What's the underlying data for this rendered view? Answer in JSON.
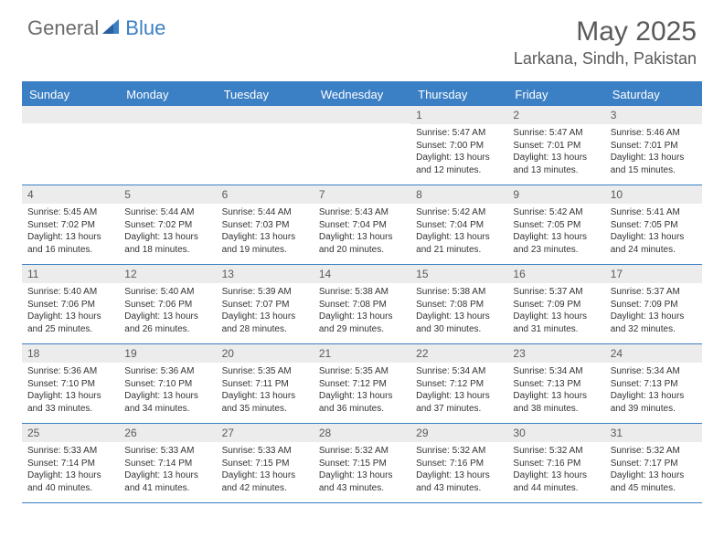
{
  "brand": {
    "part1": "General",
    "part2": "Blue"
  },
  "title": "May 2025",
  "location": "Larkana, Sindh, Pakistan",
  "header_color": "#3b7fc4",
  "daynum_bg": "#ececec",
  "dayNames": [
    "Sunday",
    "Monday",
    "Tuesday",
    "Wednesday",
    "Thursday",
    "Friday",
    "Saturday"
  ],
  "weeks": [
    [
      null,
      null,
      null,
      null,
      {
        "d": "1",
        "sr": "5:47 AM",
        "ss": "7:00 PM",
        "dl": "13 hours and 12 minutes."
      },
      {
        "d": "2",
        "sr": "5:47 AM",
        "ss": "7:01 PM",
        "dl": "13 hours and 13 minutes."
      },
      {
        "d": "3",
        "sr": "5:46 AM",
        "ss": "7:01 PM",
        "dl": "13 hours and 15 minutes."
      }
    ],
    [
      {
        "d": "4",
        "sr": "5:45 AM",
        "ss": "7:02 PM",
        "dl": "13 hours and 16 minutes."
      },
      {
        "d": "5",
        "sr": "5:44 AM",
        "ss": "7:02 PM",
        "dl": "13 hours and 18 minutes."
      },
      {
        "d": "6",
        "sr": "5:44 AM",
        "ss": "7:03 PM",
        "dl": "13 hours and 19 minutes."
      },
      {
        "d": "7",
        "sr": "5:43 AM",
        "ss": "7:04 PM",
        "dl": "13 hours and 20 minutes."
      },
      {
        "d": "8",
        "sr": "5:42 AM",
        "ss": "7:04 PM",
        "dl": "13 hours and 21 minutes."
      },
      {
        "d": "9",
        "sr": "5:42 AM",
        "ss": "7:05 PM",
        "dl": "13 hours and 23 minutes."
      },
      {
        "d": "10",
        "sr": "5:41 AM",
        "ss": "7:05 PM",
        "dl": "13 hours and 24 minutes."
      }
    ],
    [
      {
        "d": "11",
        "sr": "5:40 AM",
        "ss": "7:06 PM",
        "dl": "13 hours and 25 minutes."
      },
      {
        "d": "12",
        "sr": "5:40 AM",
        "ss": "7:06 PM",
        "dl": "13 hours and 26 minutes."
      },
      {
        "d": "13",
        "sr": "5:39 AM",
        "ss": "7:07 PM",
        "dl": "13 hours and 28 minutes."
      },
      {
        "d": "14",
        "sr": "5:38 AM",
        "ss": "7:08 PM",
        "dl": "13 hours and 29 minutes."
      },
      {
        "d": "15",
        "sr": "5:38 AM",
        "ss": "7:08 PM",
        "dl": "13 hours and 30 minutes."
      },
      {
        "d": "16",
        "sr": "5:37 AM",
        "ss": "7:09 PM",
        "dl": "13 hours and 31 minutes."
      },
      {
        "d": "17",
        "sr": "5:37 AM",
        "ss": "7:09 PM",
        "dl": "13 hours and 32 minutes."
      }
    ],
    [
      {
        "d": "18",
        "sr": "5:36 AM",
        "ss": "7:10 PM",
        "dl": "13 hours and 33 minutes."
      },
      {
        "d": "19",
        "sr": "5:36 AM",
        "ss": "7:10 PM",
        "dl": "13 hours and 34 minutes."
      },
      {
        "d": "20",
        "sr": "5:35 AM",
        "ss": "7:11 PM",
        "dl": "13 hours and 35 minutes."
      },
      {
        "d": "21",
        "sr": "5:35 AM",
        "ss": "7:12 PM",
        "dl": "13 hours and 36 minutes."
      },
      {
        "d": "22",
        "sr": "5:34 AM",
        "ss": "7:12 PM",
        "dl": "13 hours and 37 minutes."
      },
      {
        "d": "23",
        "sr": "5:34 AM",
        "ss": "7:13 PM",
        "dl": "13 hours and 38 minutes."
      },
      {
        "d": "24",
        "sr": "5:34 AM",
        "ss": "7:13 PM",
        "dl": "13 hours and 39 minutes."
      }
    ],
    [
      {
        "d": "25",
        "sr": "5:33 AM",
        "ss": "7:14 PM",
        "dl": "13 hours and 40 minutes."
      },
      {
        "d": "26",
        "sr": "5:33 AM",
        "ss": "7:14 PM",
        "dl": "13 hours and 41 minutes."
      },
      {
        "d": "27",
        "sr": "5:33 AM",
        "ss": "7:15 PM",
        "dl": "13 hours and 42 minutes."
      },
      {
        "d": "28",
        "sr": "5:32 AM",
        "ss": "7:15 PM",
        "dl": "13 hours and 43 minutes."
      },
      {
        "d": "29",
        "sr": "5:32 AM",
        "ss": "7:16 PM",
        "dl": "13 hours and 43 minutes."
      },
      {
        "d": "30",
        "sr": "5:32 AM",
        "ss": "7:16 PM",
        "dl": "13 hours and 44 minutes."
      },
      {
        "d": "31",
        "sr": "5:32 AM",
        "ss": "7:17 PM",
        "dl": "13 hours and 45 minutes."
      }
    ]
  ],
  "labels": {
    "sunrise": "Sunrise:",
    "sunset": "Sunset:",
    "daylight": "Daylight:"
  }
}
